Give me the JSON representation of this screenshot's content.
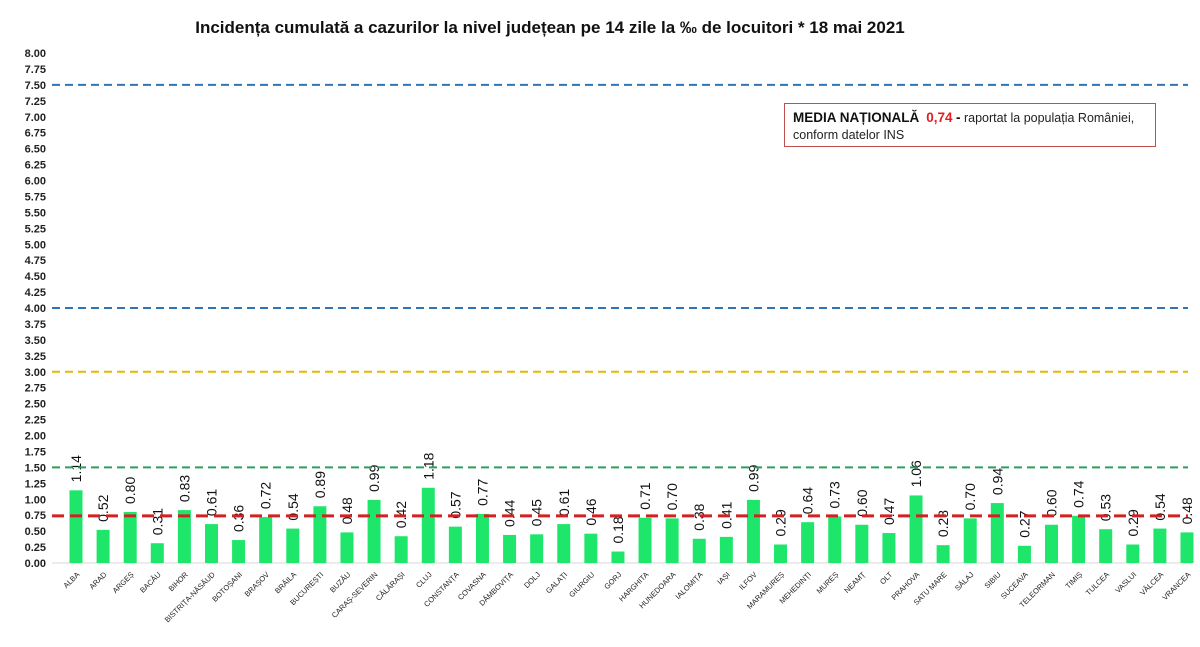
{
  "chart_data": {
    "type": "bar",
    "title": "Incidența cumulată a cazurilor la nivel județean pe 14 zile la ‰ de locuitori *  18 mai 2021",
    "ylim": [
      0,
      8
    ],
    "yticks": [
      "0.00",
      "0.25",
      "0.50",
      "0.75",
      "1.00",
      "1.25",
      "1.50",
      "1.75",
      "2.00",
      "2.25",
      "2.50",
      "2.75",
      "3.00",
      "3.25",
      "3.50",
      "3.75",
      "4.00",
      "4.25",
      "4.50",
      "4.75",
      "5.00",
      "5.25",
      "5.50",
      "5.75",
      "6.00",
      "6.25",
      "6.50",
      "6.75",
      "7.00",
      "7.25",
      "7.50",
      "7.75",
      "8.00"
    ],
    "grid": false,
    "bar_color": "#1ee66a",
    "categories": [
      "ALBA",
      "ARAD",
      "ARGEȘ",
      "BACĂU",
      "BIHOR",
      "BISTRIȚA-NĂSĂUD",
      "BOTOȘANI",
      "BRAȘOV",
      "BRĂILA",
      "BUCUREȘTI",
      "BUZĂU",
      "CARAȘ-SEVERIN",
      "CĂLĂRAȘI",
      "CLUJ",
      "CONSTANȚA",
      "COVASNA",
      "DÂMBOVIȚA",
      "DOLJ",
      "GALAȚI",
      "GIURGIU",
      "GORJ",
      "HARGHITA",
      "HUNEDOARA",
      "IALOMIȚA",
      "IAȘI",
      "ILFOV",
      "MARAMUREȘ",
      "MEHEDINȚI",
      "MUREȘ",
      "NEAMȚ",
      "OLT",
      "PRAHOVA",
      "SATU MARE",
      "SĂLAJ",
      "SIBIU",
      "SUCEAVA",
      "TELEORMAN",
      "TIMIȘ",
      "TULCEA",
      "VASLUI",
      "VÂLCEA",
      "VRANCEA"
    ],
    "values": [
      1.14,
      0.52,
      0.8,
      0.31,
      0.83,
      0.61,
      0.36,
      0.72,
      0.54,
      0.89,
      0.48,
      0.99,
      0.42,
      1.18,
      0.57,
      0.77,
      0.44,
      0.45,
      0.61,
      0.46,
      0.18,
      0.71,
      0.7,
      0.38,
      0.41,
      0.99,
      0.29,
      0.64,
      0.73,
      0.6,
      0.47,
      1.06,
      0.28,
      0.7,
      0.94,
      0.27,
      0.6,
      0.74,
      0.53,
      0.29,
      0.54,
      0.48
    ],
    "labels": [
      "1.14",
      "0.52",
      "0.80",
      "0.31",
      "0.83",
      "0.61",
      "0.36",
      "0.72",
      "0.54",
      "0.89",
      "0.48",
      "0.99",
      "0.42",
      "1.18",
      "0.57",
      "0.77",
      "0.44",
      "0.45",
      "0.61",
      "0.46",
      "0.18",
      "0.71",
      "0.70",
      "0.38",
      "0.41",
      "0.99",
      "0.29",
      "0.64",
      "0.73",
      "0.60",
      "0.47",
      "1.06",
      "0.28",
      "0.70",
      "0.94",
      "0.27",
      "0.60",
      "0.74",
      "0.53",
      "0.29",
      "0.54",
      "0.48"
    ],
    "reference_lines": [
      {
        "value": 7.5,
        "color": "#2e75b6"
      },
      {
        "value": 4.0,
        "color": "#2e75b6"
      },
      {
        "value": 3.0,
        "color": "#e6b800"
      },
      {
        "value": 1.5,
        "color": "#2e9e5e"
      },
      {
        "value": 0.74,
        "color": "#d42020"
      }
    ]
  },
  "legend": {
    "bold": "MEDIA NAȚIONALĂ",
    "value": "0,74",
    "dash": "-",
    "text1": "raportat la populația României,",
    "text2": "conform datelor INS"
  }
}
